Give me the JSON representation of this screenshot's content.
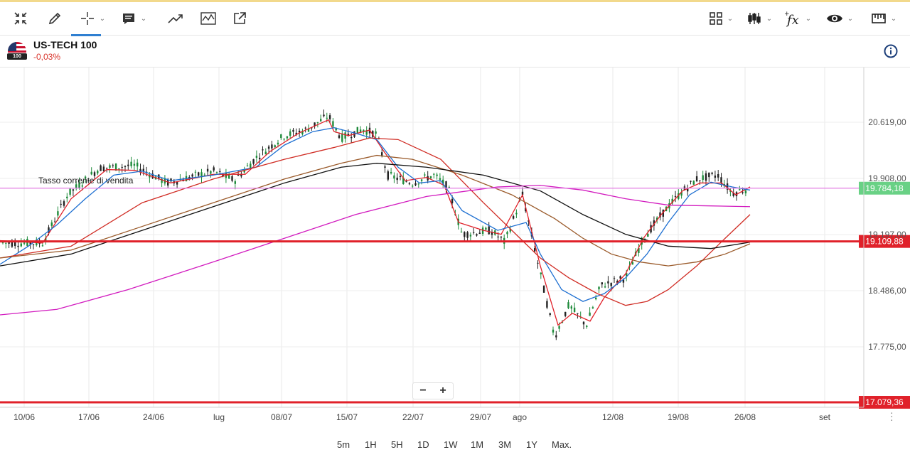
{
  "toolbar": {
    "items": [
      {
        "name": "collapse-icon"
      },
      {
        "name": "pencil-icon"
      },
      {
        "name": "crosshair-icon"
      },
      {
        "name": "comment-icon"
      },
      {
        "name": "trend-icon"
      },
      {
        "name": "wave-icon"
      },
      {
        "name": "share-icon"
      },
      {
        "name": "layout-icon"
      },
      {
        "name": "candles-icon"
      },
      {
        "name": "fx-icon"
      },
      {
        "name": "eye-icon"
      },
      {
        "name": "ruler-icon"
      }
    ]
  },
  "instrument": {
    "name": "US-TECH 100",
    "change": "-0,03%",
    "badge": "100"
  },
  "chart": {
    "annotation": "Tasso corrente di vendita",
    "x_labels": [
      "10/06",
      "17/06",
      "24/06",
      "lug",
      "08/07",
      "15/07",
      "22/07",
      "29/07",
      "ago",
      "12/08",
      "19/08",
      "26/08",
      "set"
    ],
    "y_labels": [
      "20.619,00",
      "19.908,00",
      "19.197,00",
      "18.486,00",
      "17.775,00"
    ],
    "price_tags": [
      {
        "value": "19.784,18",
        "color": "#69d185"
      },
      {
        "value": "19.109,88",
        "color": "#e0212a"
      },
      {
        "value": "17.079,36",
        "color": "#e0212a"
      }
    ],
    "colors": {
      "up": "#1e8a3a",
      "down": "#222222",
      "hline": "#e0212a",
      "current": "#e37be3"
    }
  },
  "zoom": {
    "minus": "−",
    "plus": "+"
  },
  "timeframes": [
    "5m",
    "1H",
    "5H",
    "1D",
    "1W",
    "1M",
    "3M",
    "1Y",
    "Max."
  ]
}
